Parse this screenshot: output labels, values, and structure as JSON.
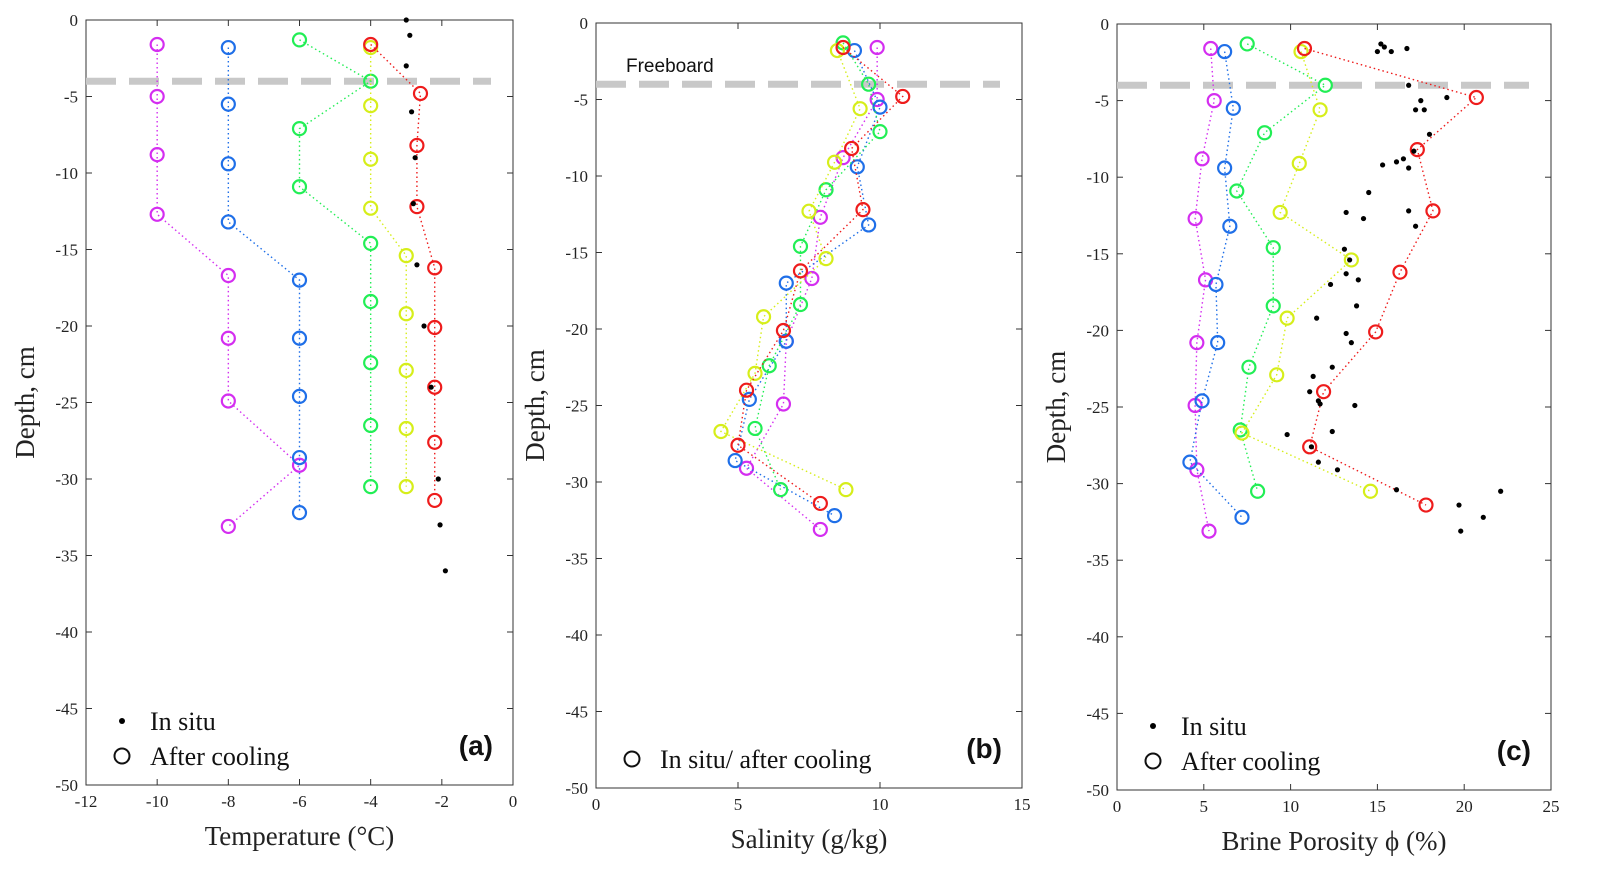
{
  "colors": {
    "magenta": "#d42ef0",
    "blue": "#1f6fe8",
    "green": "#22ee55",
    "yellow": "#d6ee1a",
    "red": "#ee1c1c",
    "insitu": "#000000",
    "freeboard": "#c8c8c8",
    "axis": "#333333"
  },
  "chart_data": [
    {
      "type": "scatter",
      "panel_tag": "(a)",
      "xlabel": "Temperature (°C)",
      "ylabel": "Depth, cm",
      "xlim": [
        -12,
        0
      ],
      "ylim": [
        -50,
        0
      ],
      "xticks": [
        -12,
        -10,
        -8,
        -6,
        -4,
        -2,
        0
      ],
      "yticks": [
        0,
        -5,
        -10,
        -15,
        -20,
        -25,
        -30,
        -35,
        -40,
        -45,
        -50
      ],
      "freeboard": -4,
      "annotation": "",
      "legend": {
        "position": "bottom-left",
        "entries": [
          {
            "marker": "dot",
            "label": "In situ"
          },
          {
            "marker": "circle",
            "label": "After cooling"
          }
        ]
      },
      "insitu": {
        "x": [
          -3,
          -2.9,
          -3,
          -2.85,
          -2.75,
          -2.8,
          -2.7,
          -2.5,
          -2.3,
          -2.1,
          -2.05,
          -1.9
        ],
        "y": [
          0,
          -1,
          -3,
          -6,
          -9,
          -12,
          -16,
          -20,
          -24,
          -30,
          -33,
          -36
        ]
      },
      "series": [
        {
          "name": "magenta",
          "color": "magenta",
          "x": [
            -10,
            -10,
            -10,
            -10,
            -8,
            -8,
            -8,
            -6,
            -8
          ],
          "y": [
            -1.6,
            -5,
            -8.8,
            -12.7,
            -16.7,
            -20.8,
            -24.9,
            -29.1,
            -33.1
          ]
        },
        {
          "name": "blue",
          "color": "blue",
          "x": [
            -8,
            -8,
            -8,
            -8,
            -6,
            -6,
            -6,
            -6,
            -6
          ],
          "y": [
            -1.8,
            -5.5,
            -9.4,
            -13.2,
            -17,
            -20.8,
            -24.6,
            -28.6,
            -32.2
          ]
        },
        {
          "name": "green",
          "color": "green",
          "x": [
            -6,
            -4,
            -6,
            -6,
            -4,
            -4,
            -4,
            -4,
            -4
          ],
          "y": [
            -1.3,
            -4,
            -7.1,
            -10.9,
            -14.6,
            -18.4,
            -22.4,
            -26.5,
            -30.5
          ]
        },
        {
          "name": "yellow",
          "color": "yellow",
          "x": [
            -4,
            -4,
            -4,
            -4,
            -3,
            -3,
            -3,
            -3,
            -3
          ],
          "y": [
            -1.8,
            -5.6,
            -9.1,
            -12.3,
            -15.4,
            -19.2,
            -22.9,
            -26.7,
            -30.5
          ]
        },
        {
          "name": "red",
          "color": "red",
          "x": [
            -4,
            -2.6,
            -2.7,
            -2.7,
            -2.2,
            -2.2,
            -2.2,
            -2.2,
            -2.2
          ],
          "y": [
            -1.6,
            -4.8,
            -8.2,
            -12.2,
            -16.2,
            -20.1,
            -24,
            -27.6,
            -31.4
          ]
        }
      ]
    },
    {
      "type": "scatter",
      "panel_tag": "(b)",
      "xlabel": "Salinity (g/kg)",
      "ylabel": "Depth, cm",
      "xlim": [
        0,
        15
      ],
      "ylim": [
        -50,
        0
      ],
      "xticks": [
        0,
        5,
        10,
        15
      ],
      "yticks": [
        0,
        -5,
        -10,
        -15,
        -20,
        -25,
        -30,
        -35,
        -40,
        -45,
        -50
      ],
      "freeboard": -4,
      "annotation": "Freeboard",
      "legend": {
        "position": "bottom-left",
        "entries": [
          {
            "marker": "circle",
            "label": "In situ/ after cooling"
          }
        ]
      },
      "insitu": {
        "x": [],
        "y": []
      },
      "series": [
        {
          "name": "magenta",
          "color": "magenta",
          "x": [
            9.9,
            9.9,
            8.7,
            7.9,
            7.6,
            6.7,
            6.6,
            5.3,
            7.9
          ],
          "y": [
            -1.6,
            -5,
            -8.8,
            -12.7,
            -16.7,
            -20.8,
            -24.9,
            -29.1,
            -33.1
          ]
        },
        {
          "name": "blue",
          "color": "blue",
          "x": [
            9.1,
            10,
            9.2,
            9.6,
            6.7,
            6.7,
            5.4,
            4.9,
            8.4
          ],
          "y": [
            -1.8,
            -5.5,
            -9.4,
            -13.2,
            -17,
            -20.8,
            -24.6,
            -28.6,
            -32.2
          ]
        },
        {
          "name": "green",
          "color": "green",
          "x": [
            8.7,
            9.6,
            10,
            8.1,
            7.2,
            7.2,
            6.1,
            5.6,
            6.5
          ],
          "y": [
            -1.3,
            -4,
            -7.1,
            -10.9,
            -14.6,
            -18.4,
            -22.4,
            -26.5,
            -30.5
          ]
        },
        {
          "name": "yellow",
          "color": "yellow",
          "x": [
            8.5,
            9.3,
            8.4,
            7.5,
            8.1,
            5.9,
            5.6,
            4.4,
            8.8
          ],
          "y": [
            -1.8,
            -5.6,
            -9.1,
            -12.3,
            -15.4,
            -19.2,
            -22.9,
            -26.7,
            -30.5
          ]
        },
        {
          "name": "red",
          "color": "red",
          "x": [
            8.7,
            10.8,
            9,
            9.4,
            7.2,
            6.6,
            5.3,
            5,
            7.9
          ],
          "y": [
            -1.6,
            -4.8,
            -8.2,
            -12.2,
            -16.2,
            -20.1,
            -24,
            -27.6,
            -31.4
          ]
        }
      ]
    },
    {
      "type": "scatter",
      "panel_tag": "(c)",
      "xlabel": "Brine Porosity ϕ (%)",
      "ylabel": "Depth, cm",
      "xlim": [
        0,
        25
      ],
      "ylim": [
        -50,
        0
      ],
      "xticks": [
        0,
        5,
        10,
        15,
        20,
        25
      ],
      "yticks": [
        0,
        -5,
        -10,
        -15,
        -20,
        -25,
        -30,
        -35,
        -40,
        -45,
        -50
      ],
      "freeboard": -4,
      "annotation": "",
      "legend": {
        "position": "bottom-left",
        "entries": [
          {
            "marker": "dot",
            "label": "In situ"
          },
          {
            "marker": "circle",
            "label": "After cooling"
          }
        ]
      },
      "insitu": {
        "x": [
          15.2,
          15.4,
          15.8,
          16.7,
          15,
          16.8,
          17.5,
          19,
          17.7,
          17.2,
          18,
          17.1,
          16.5,
          15.3,
          16.1,
          16.8,
          14.5,
          14.2,
          13.2,
          16.8,
          17.2,
          13.1,
          13.4,
          13.9,
          12.3,
          13.2,
          13.8,
          11.5,
          13.2,
          13.5,
          12.4,
          11.3,
          11.6,
          11.1,
          11.7,
          13.7,
          12.4,
          9.8,
          11.2,
          11.6,
          12.7,
          16.1,
          19.7,
          21.1,
          22.1,
          19.8
        ],
        "y": [
          -1.3,
          -1.5,
          -1.8,
          -1.6,
          -1.8,
          -4,
          -5,
          -4.8,
          -5.6,
          -5.6,
          -7.2,
          -8.3,
          -8.8,
          -9.2,
          -9,
          -9.4,
          -11,
          -12.7,
          -12.3,
          -12.2,
          -13.2,
          -14.7,
          -15.4,
          -16.7,
          -17,
          -16.3,
          -18.4,
          -19.2,
          -20.2,
          -20.8,
          -22.4,
          -23,
          -24.6,
          -24,
          -24.8,
          -24.9,
          -26.6,
          -26.8,
          -27.6,
          -28.6,
          -29.1,
          -30.4,
          -31.4,
          -32.2,
          -30.5,
          -33.1
        ]
      },
      "series": [
        {
          "name": "magenta",
          "color": "magenta",
          "x": [
            5.4,
            5.6,
            4.9,
            4.5,
            5.1,
            4.6,
            4.5,
            4.6,
            5.3
          ],
          "y": [
            -1.6,
            -5,
            -8.8,
            -12.7,
            -16.7,
            -20.8,
            -24.9,
            -29.1,
            -33.1
          ]
        },
        {
          "name": "blue",
          "color": "blue",
          "x": [
            6.2,
            6.7,
            6.2,
            6.5,
            5.7,
            5.8,
            4.9,
            4.2,
            7.2
          ],
          "y": [
            -1.8,
            -5.5,
            -9.4,
            -13.2,
            -17,
            -20.8,
            -24.6,
            -28.6,
            -32.2
          ]
        },
        {
          "name": "green",
          "color": "green",
          "x": [
            7.5,
            12,
            8.5,
            6.9,
            9,
            9,
            7.6,
            7.1,
            8.1
          ],
          "y": [
            -1.3,
            -4,
            -7.1,
            -10.9,
            -14.6,
            -18.4,
            -22.4,
            -26.5,
            -30.5
          ]
        },
        {
          "name": "yellow",
          "color": "yellow",
          "x": [
            10.6,
            11.7,
            10.5,
            9.4,
            13.5,
            9.8,
            9.2,
            7.2,
            14.6
          ],
          "y": [
            -1.8,
            -5.6,
            -9.1,
            -12.3,
            -15.4,
            -19.2,
            -22.9,
            -26.7,
            -30.5
          ]
        },
        {
          "name": "red",
          "color": "red",
          "x": [
            10.8,
            20.7,
            17.3,
            18.2,
            16.3,
            14.9,
            11.9,
            11.1,
            17.8
          ],
          "y": [
            -1.6,
            -4.8,
            -8.2,
            -12.2,
            -16.2,
            -20.1,
            -24,
            -27.6,
            -31.4
          ]
        }
      ]
    }
  ]
}
